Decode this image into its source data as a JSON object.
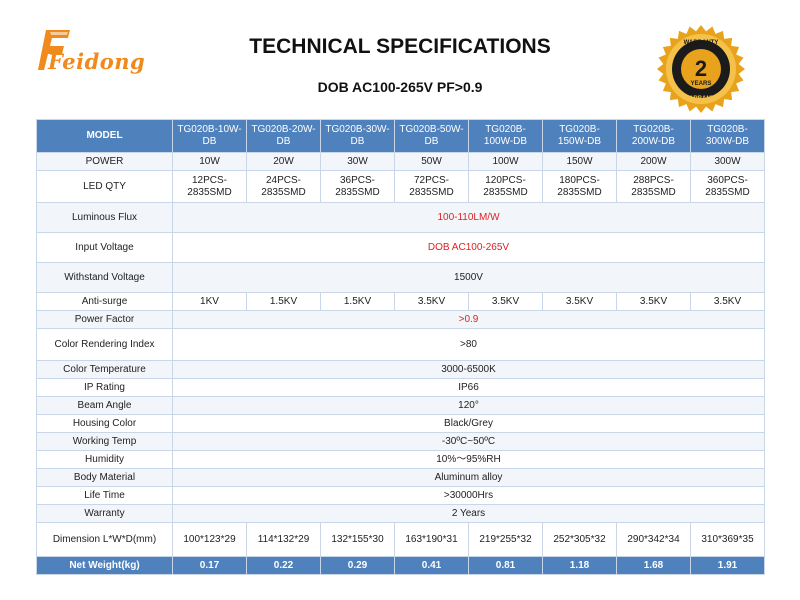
{
  "brand": {
    "logo_text": "Feidong",
    "accent": "#f08a1c"
  },
  "title": "TECHNICAL SPECIFICATIONS",
  "subtitle": "DOB AC100-265V PF>0.9",
  "badge": {
    "top_text": "WARRANTY",
    "number": "2",
    "years": "YEARS",
    "bottom_text": "WARRANTY",
    "colors": {
      "ring": "#e8a21b",
      "center": "#1b1b1b"
    }
  },
  "table": {
    "header_label": "MODEL",
    "models": [
      "TG020B-10W-DB",
      "TG020B-20W-DB",
      "TG020B-30W-DB",
      "TG020B-50W-DB",
      "TG020B-100W-DB",
      "TG020B-150W-DB",
      "TG020B-200W-DB",
      "TG020B-300W-DB"
    ],
    "rows": [
      {
        "label": "POWER",
        "values": [
          "10W",
          "20W",
          "30W",
          "50W",
          "100W",
          "150W",
          "200W",
          "300W"
        ]
      },
      {
        "label": "LED QTY",
        "values": [
          "12PCS-2835SMD",
          "24PCS-2835SMD",
          "36PCS-2835SMD",
          "72PCS-2835SMD",
          "120PCS-2835SMD",
          "180PCS-2835SMD",
          "288PCS-2835SMD",
          "360PCS-2835SMD"
        ]
      },
      {
        "label": "Luminous Flux",
        "value": "100-110LM/W",
        "red": true
      },
      {
        "label": "Input Voltage",
        "value": "DOB AC100-265V",
        "red": true
      },
      {
        "label": "Withstand Voltage",
        "value": "1500V"
      },
      {
        "label": "Anti-surge",
        "values": [
          "1KV",
          "1.5KV",
          "1.5KV",
          "3.5KV",
          "3.5KV",
          "3.5KV",
          "3.5KV",
          "3.5KV"
        ]
      },
      {
        "label": "Power Factor",
        "value": ">0.9",
        "red": true
      },
      {
        "label": "Color Rendering Index",
        "value": ">80"
      },
      {
        "label": "Color Temperature",
        "value": "3000-6500K"
      },
      {
        "label": "IP Rating",
        "value": "IP66"
      },
      {
        "label": "Beam Angle",
        "value": "120°"
      },
      {
        "label": "Housing Color",
        "value": "Black/Grey"
      },
      {
        "label": "Working Temp",
        "value": "-30ºC~50ºC"
      },
      {
        "label": "Humidity",
        "value": "10%～95%RH"
      },
      {
        "label": "Body Material",
        "value": "Aluminum alloy"
      },
      {
        "label": "Life Time",
        "value": ">30000Hrs"
      },
      {
        "label": "Warranty",
        "value": "2 Years"
      },
      {
        "label": "Dimension L*W*D(mm)",
        "values": [
          "100*123*29",
          "114*132*29",
          "132*155*30",
          "163*190*31",
          "219*255*32",
          "252*305*32",
          "290*342*34",
          "310*369*35"
        ]
      }
    ],
    "footer": {
      "label": "Net Weight(kg)",
      "values": [
        "0.17",
        "0.22",
        "0.29",
        "0.41",
        "0.81",
        "1.18",
        "1.68",
        "1.91"
      ]
    },
    "colors": {
      "header": "#4f81bd",
      "stripe": "#f2f6fb",
      "highlight": "#e02020"
    }
  }
}
